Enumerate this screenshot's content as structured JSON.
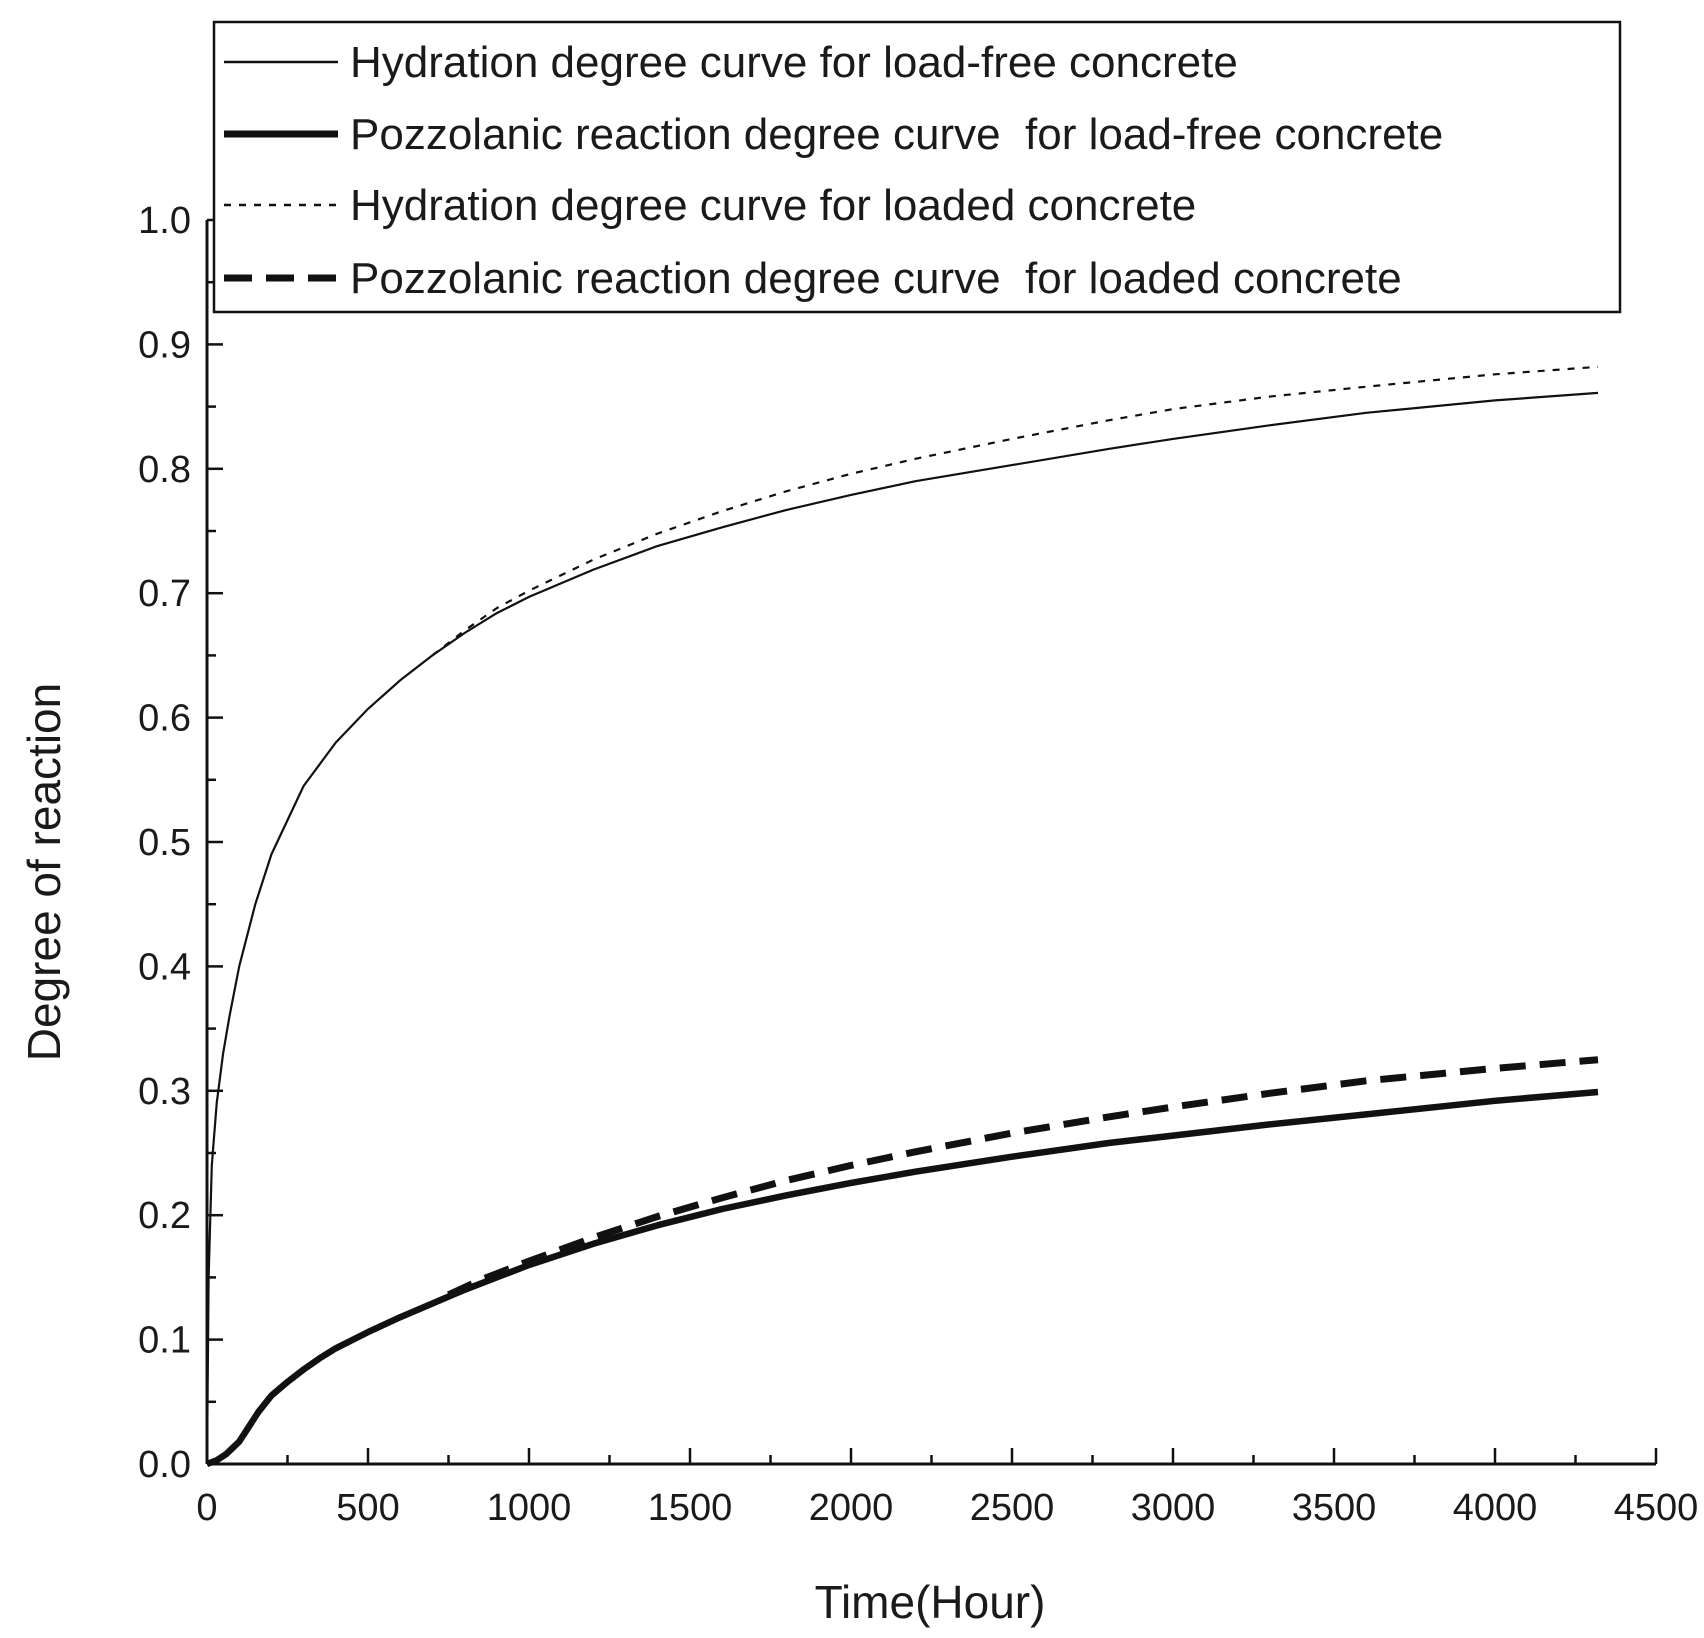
{
  "chart_data": {
    "type": "line",
    "xlabel": "Time(Hour)",
    "ylabel": "Degree of reaction",
    "xlim": [
      0,
      4500
    ],
    "ylim": [
      0.0,
      1.0
    ],
    "x_ticks": [
      "0",
      "500",
      "1000",
      "1500",
      "2000",
      "2500",
      "3000",
      "3500",
      "4000",
      "4500"
    ],
    "y_ticks": [
      "0.0",
      "0.1",
      "0.2",
      "0.3",
      "0.4",
      "0.5",
      "0.6",
      "0.7",
      "0.8",
      "0.9",
      "1.0"
    ],
    "grid": false,
    "legend_position": "top",
    "series": [
      {
        "name": "Hydration degree curve for load-free concrete",
        "style": "thin-solid",
        "color": "#111111",
        "points": [
          [
            0,
            0.0
          ],
          [
            5,
            0.15
          ],
          [
            15,
            0.24
          ],
          [
            30,
            0.29
          ],
          [
            50,
            0.33
          ],
          [
            70,
            0.36
          ],
          [
            100,
            0.4
          ],
          [
            150,
            0.45
          ],
          [
            200,
            0.49
          ],
          [
            300,
            0.545
          ],
          [
            400,
            0.58
          ],
          [
            500,
            0.607
          ],
          [
            600,
            0.63
          ],
          [
            700,
            0.65
          ],
          [
            800,
            0.668
          ],
          [
            900,
            0.684
          ],
          [
            1000,
            0.697
          ],
          [
            1200,
            0.719
          ],
          [
            1400,
            0.738
          ],
          [
            1600,
            0.753
          ],
          [
            1800,
            0.767
          ],
          [
            2000,
            0.779
          ],
          [
            2200,
            0.79
          ],
          [
            2500,
            0.803
          ],
          [
            2800,
            0.816
          ],
          [
            3000,
            0.824
          ],
          [
            3300,
            0.835
          ],
          [
            3600,
            0.845
          ],
          [
            4000,
            0.855
          ],
          [
            4320,
            0.861
          ]
        ]
      },
      {
        "name": "Pozzolanic reaction degree curve  for load-free concrete",
        "style": "thick-solid",
        "color": "#111111",
        "points": [
          [
            0,
            0.0
          ],
          [
            30,
            0.003
          ],
          [
            60,
            0.008
          ],
          [
            100,
            0.018
          ],
          [
            130,
            0.03
          ],
          [
            160,
            0.042
          ],
          [
            200,
            0.055
          ],
          [
            250,
            0.066
          ],
          [
            300,
            0.076
          ],
          [
            350,
            0.085
          ],
          [
            400,
            0.093
          ],
          [
            500,
            0.106
          ],
          [
            600,
            0.118
          ],
          [
            700,
            0.129
          ],
          [
            800,
            0.14
          ],
          [
            900,
            0.15
          ],
          [
            1000,
            0.16
          ],
          [
            1200,
            0.177
          ],
          [
            1400,
            0.192
          ],
          [
            1600,
            0.205
          ],
          [
            1800,
            0.216
          ],
          [
            2000,
            0.226
          ],
          [
            2200,
            0.235
          ],
          [
            2500,
            0.247
          ],
          [
            2800,
            0.258
          ],
          [
            3000,
            0.264
          ],
          [
            3300,
            0.273
          ],
          [
            3600,
            0.281
          ],
          [
            4000,
            0.292
          ],
          [
            4320,
            0.299
          ]
        ]
      },
      {
        "name": "Hydration degree curve for loaded concrete",
        "style": "thin-dashed",
        "color": "#111111",
        "points": [
          [
            700,
            0.65
          ],
          [
            800,
            0.67
          ],
          [
            900,
            0.688
          ],
          [
            1000,
            0.702
          ],
          [
            1200,
            0.727
          ],
          [
            1400,
            0.748
          ],
          [
            1600,
            0.766
          ],
          [
            1800,
            0.782
          ],
          [
            2000,
            0.796
          ],
          [
            2200,
            0.808
          ],
          [
            2500,
            0.824
          ],
          [
            2800,
            0.839
          ],
          [
            3000,
            0.848
          ],
          [
            3300,
            0.858
          ],
          [
            3600,
            0.866
          ],
          [
            4000,
            0.876
          ],
          [
            4320,
            0.882
          ]
        ]
      },
      {
        "name": "Pozzolanic reaction degree curve  for loaded concrete",
        "style": "thick-dashed",
        "color": "#111111",
        "points": [
          [
            750,
            0.136
          ],
          [
            850,
            0.148
          ],
          [
            1000,
            0.163
          ],
          [
            1200,
            0.182
          ],
          [
            1400,
            0.199
          ],
          [
            1600,
            0.214
          ],
          [
            1800,
            0.228
          ],
          [
            2000,
            0.24
          ],
          [
            2200,
            0.251
          ],
          [
            2500,
            0.266
          ],
          [
            2800,
            0.279
          ],
          [
            3000,
            0.287
          ],
          [
            3300,
            0.298
          ],
          [
            3600,
            0.308
          ],
          [
            4000,
            0.318
          ],
          [
            4320,
            0.325
          ]
        ]
      }
    ]
  }
}
